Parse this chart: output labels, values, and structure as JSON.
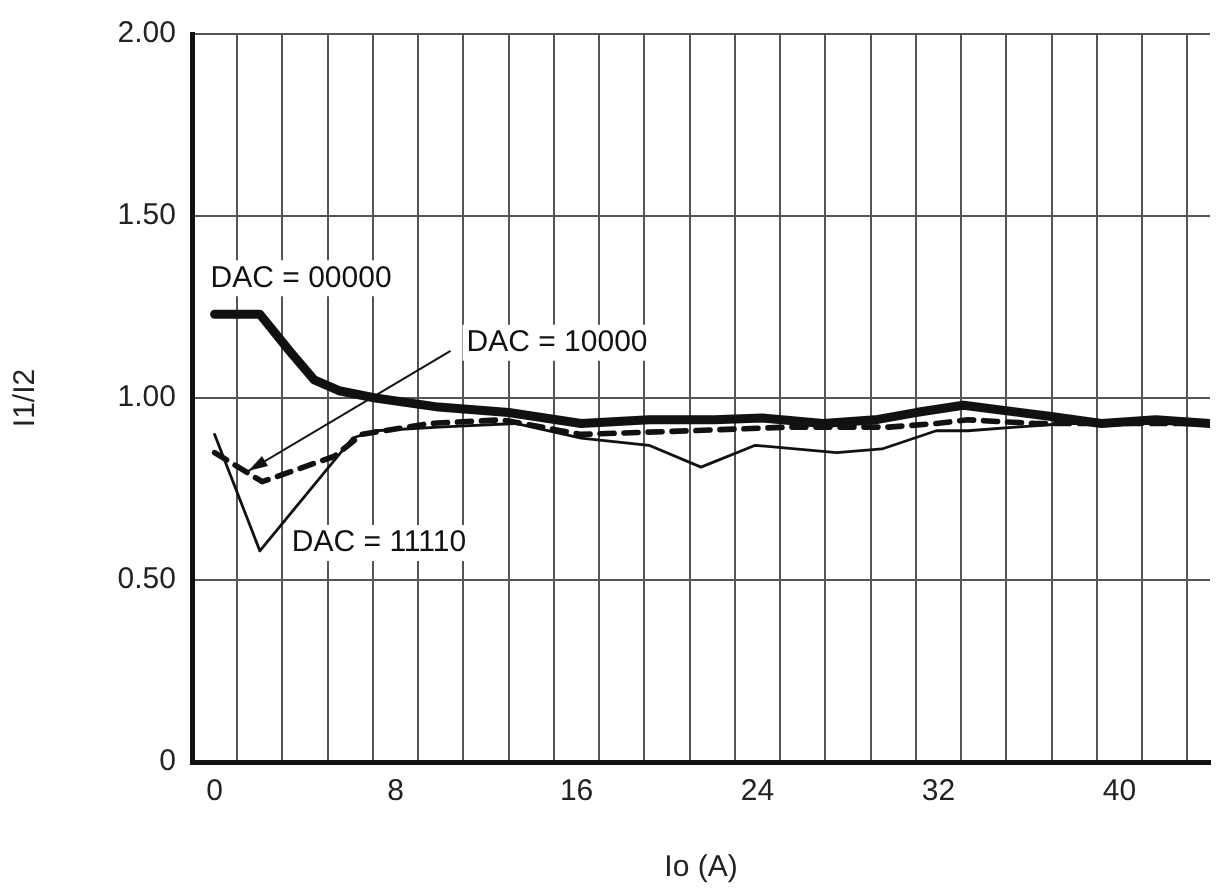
{
  "chart_data": {
    "type": "line",
    "xlabel": "Io (A)",
    "ylabel": "I1/I2",
    "xlim": [
      -1,
      44
    ],
    "ylim": [
      0,
      2
    ],
    "xticks": [
      0,
      {
        "value": 1,
        "label": null
      },
      {
        "value": 3,
        "label": null
      },
      {
        "value": 5,
        "label": null
      },
      {
        "value": 7,
        "label": null
      },
      8,
      {
        "value": 9,
        "label": null
      },
      {
        "value": 11,
        "label": null
      },
      {
        "value": 13,
        "label": null
      },
      {
        "value": 15,
        "label": null
      },
      16,
      {
        "value": 17,
        "label": null
      },
      {
        "value": 19,
        "label": null
      },
      {
        "value": 21,
        "label": null
      },
      {
        "value": 23,
        "label": null
      },
      24,
      {
        "value": 25,
        "label": null
      },
      {
        "value": 27,
        "label": null
      },
      {
        "value": 29,
        "label": null
      },
      {
        "value": 31,
        "label": null
      },
      32,
      {
        "value": 33,
        "label": null
      },
      {
        "value": 35,
        "label": null
      },
      {
        "value": 37,
        "label": null
      },
      {
        "value": 39,
        "label": null
      },
      40,
      {
        "value": 41,
        "label": null
      },
      {
        "value": 43,
        "label": null
      }
    ],
    "yticks": [
      0,
      {
        "value": 0.5,
        "label": "0.50"
      },
      {
        "value": 1,
        "label": "1.00"
      },
      {
        "value": 1.5,
        "label": "1.50"
      },
      {
        "value": 2,
        "label": "2.00"
      }
    ],
    "grid": true,
    "legend": false,
    "marker": "none",
    "series": [
      {
        "color": "#111111",
        "line_style": "solid",
        "x": [
          0,
          2,
          3.3,
          4.4,
          5.5,
          7.1,
          9.9,
          13,
          16.2,
          19.2,
          22.1,
          24.2,
          26.9,
          29.2,
          31,
          33.1,
          36.9,
          39.2,
          41.6,
          44
        ],
        "values": [
          1.23,
          1.23,
          1.13,
          1.05,
          1.02,
          1.0,
          0.975,
          0.96,
          0.93,
          0.94,
          0.94,
          0.945,
          0.93,
          0.94,
          0.96,
          0.98,
          0.95,
          0.93,
          0.94,
          0.93
        ]
      },
      {
        "color": "#111111",
        "line_style": "dashed",
        "x": [
          0,
          2.1,
          5.3,
          6.5,
          9.5,
          12.7,
          16.2,
          21,
          25.4,
          29.8,
          31.9,
          33.3,
          36.3,
          42.2,
          44
        ],
        "values": [
          0.85,
          0.77,
          0.84,
          0.9,
          0.93,
          0.94,
          0.9,
          0.91,
          0.92,
          0.92,
          0.93,
          0.94,
          0.93,
          0.93,
          0.93
        ]
      },
      {
        "color": "#111111",
        "line_style": "solid",
        "x": [
          0,
          2,
          6.1,
          7.1,
          9.9,
          13.3,
          16.2,
          19.2,
          21.5,
          23.9,
          27.5,
          29.5,
          31.9,
          33.3,
          35.4,
          37.7,
          44
        ],
        "values": [
          0.9,
          0.58,
          0.89,
          0.91,
          0.92,
          0.93,
          0.89,
          0.87,
          0.81,
          0.87,
          0.85,
          0.86,
          0.91,
          0.91,
          0.92,
          0.93,
          0.93
        ]
      }
    ],
    "annotations": [
      {
        "text": "DAC = 00000",
        "x": 0,
        "y": 1.23
      },
      {
        "text": "DAC = 10000",
        "x": 1.5,
        "y": 0.8
      },
      {
        "text": "DAC = 11110",
        "x": 2,
        "y": 0.58
      }
    ]
  }
}
